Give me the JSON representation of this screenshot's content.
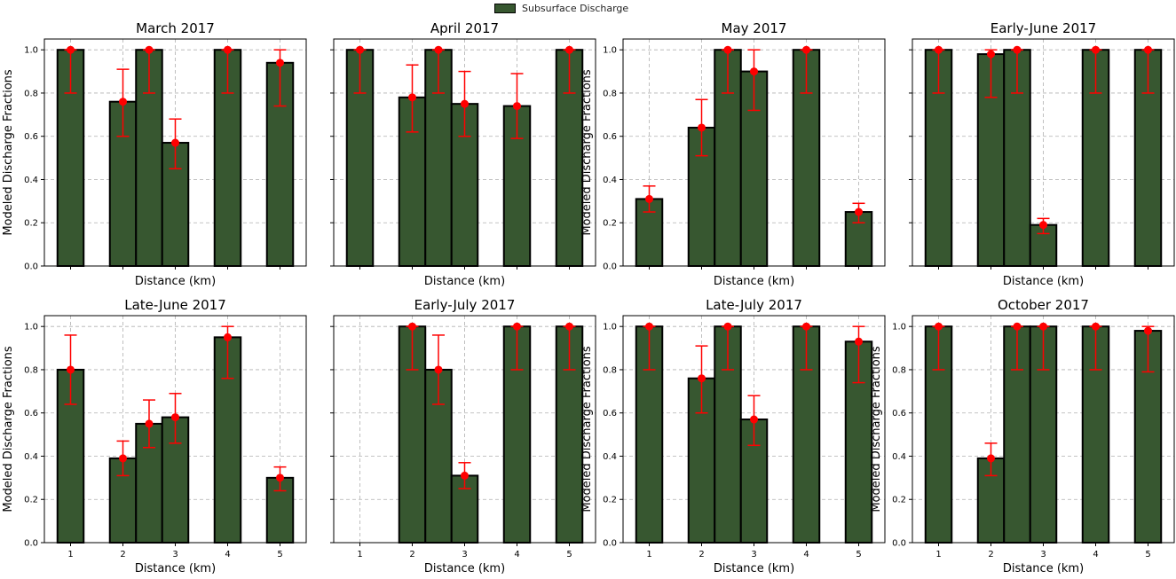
{
  "legend": {
    "label": "Subsurface Discharge",
    "color": "#375730"
  },
  "colors": {
    "bar": "#375730",
    "error": "#ff0000",
    "grid": "#b0b0b0"
  },
  "chart_data": [
    {
      "type": "bar",
      "title": "March 2017",
      "xlabel": "Distance (km)",
      "ylabel": "Modeled Discharge Fractions",
      "xlim": [
        0.5,
        5.5
      ],
      "ylim": [
        0,
        1.05
      ],
      "yticks": [
        0.0,
        0.2,
        0.4,
        0.6,
        0.8,
        1.0
      ],
      "yticklabels": [
        "0.0",
        "0.2",
        "0.4",
        "0.6",
        "0.8",
        "1.0"
      ],
      "xticks": [
        1,
        2,
        3,
        4,
        5
      ],
      "xticklabels": [],
      "bars": [
        {
          "x": 1,
          "value": 1.0,
          "err_low": 0.8,
          "err_high": 1.0
        },
        {
          "x": 2,
          "value": 0.76,
          "err_low": 0.6,
          "err_high": 0.91
        },
        {
          "x": 2.5,
          "value": 1.0,
          "err_low": 0.8,
          "err_high": 1.0
        },
        {
          "x": 3,
          "value": 0.57,
          "err_low": 0.45,
          "err_high": 0.68
        },
        {
          "x": 4,
          "value": 1.0,
          "err_low": 0.8,
          "err_high": 1.0
        },
        {
          "x": 5,
          "value": 0.94,
          "err_low": 0.74,
          "err_high": 1.0
        }
      ]
    },
    {
      "type": "bar",
      "title": "April 2017",
      "xlabel": "Distance (km)",
      "ylabel": "",
      "xlim": [
        0.5,
        5.5
      ],
      "ylim": [
        0,
        1.05
      ],
      "yticks": [
        0.0,
        0.2,
        0.4,
        0.6,
        0.8,
        1.0
      ],
      "yticklabels": [],
      "xticks": [
        1,
        2,
        3,
        4,
        5
      ],
      "xticklabels": [],
      "bars": [
        {
          "x": 1,
          "value": 1.0,
          "err_low": 0.8,
          "err_high": 1.0
        },
        {
          "x": 2,
          "value": 0.78,
          "err_low": 0.62,
          "err_high": 0.93
        },
        {
          "x": 2.5,
          "value": 1.0,
          "err_low": 0.8,
          "err_high": 1.0
        },
        {
          "x": 3,
          "value": 0.75,
          "err_low": 0.6,
          "err_high": 0.9
        },
        {
          "x": 4,
          "value": 0.74,
          "err_low": 0.59,
          "err_high": 0.89
        },
        {
          "x": 5,
          "value": 1.0,
          "err_low": 0.8,
          "err_high": 1.0
        }
      ]
    },
    {
      "type": "bar",
      "title": "May 2017",
      "xlabel": "Distance (km)",
      "ylabel": "Modeled Discharge Fractions",
      "xlim": [
        0.5,
        5.5
      ],
      "ylim": [
        0,
        1.05
      ],
      "yticks": [
        0.0,
        0.2,
        0.4,
        0.6,
        0.8,
        1.0
      ],
      "yticklabels": [
        "0.0",
        "0.2",
        "0.4",
        "0.6",
        "0.8",
        "1.0"
      ],
      "xticks": [
        1,
        2,
        3,
        4,
        5
      ],
      "xticklabels": [],
      "bars": [
        {
          "x": 1,
          "value": 0.31,
          "err_low": 0.25,
          "err_high": 0.37
        },
        {
          "x": 2,
          "value": 0.64,
          "err_low": 0.51,
          "err_high": 0.77
        },
        {
          "x": 2.5,
          "value": 1.0,
          "err_low": 0.8,
          "err_high": 1.0
        },
        {
          "x": 3,
          "value": 0.9,
          "err_low": 0.72,
          "err_high": 1.0
        },
        {
          "x": 4,
          "value": 1.0,
          "err_low": 0.8,
          "err_high": 1.0
        },
        {
          "x": 5,
          "value": 0.25,
          "err_low": 0.2,
          "err_high": 0.29
        }
      ]
    },
    {
      "type": "bar",
      "title": "Early-June 2017",
      "xlabel": "Distance (km)",
      "ylabel": "",
      "xlim": [
        0.5,
        5.5
      ],
      "ylim": [
        0,
        1.05
      ],
      "yticks": [
        0.0,
        0.2,
        0.4,
        0.6,
        0.8,
        1.0
      ],
      "yticklabels": [],
      "xticks": [
        1,
        2,
        3,
        4,
        5
      ],
      "xticklabels": [],
      "bars": [
        {
          "x": 1,
          "value": 1.0,
          "err_low": 0.8,
          "err_high": 1.0
        },
        {
          "x": 2,
          "value": 0.98,
          "err_low": 0.78,
          "err_high": 1.0
        },
        {
          "x": 2.5,
          "value": 1.0,
          "err_low": 0.8,
          "err_high": 1.0
        },
        {
          "x": 3,
          "value": 0.19,
          "err_low": 0.15,
          "err_high": 0.22
        },
        {
          "x": 4,
          "value": 1.0,
          "err_low": 0.8,
          "err_high": 1.0
        },
        {
          "x": 5,
          "value": 1.0,
          "err_low": 0.8,
          "err_high": 1.0
        }
      ]
    },
    {
      "type": "bar",
      "title": "Late-June 2017",
      "xlabel": "Distance (km)",
      "ylabel": "Modeled Discharge Fractions",
      "xlim": [
        0.5,
        5.5
      ],
      "ylim": [
        0,
        1.05
      ],
      "yticks": [
        0.0,
        0.2,
        0.4,
        0.6,
        0.8,
        1.0
      ],
      "yticklabels": [
        "0.0",
        "0.2",
        "0.4",
        "0.6",
        "0.8",
        "1.0"
      ],
      "xticks": [
        1,
        2,
        3,
        4,
        5
      ],
      "xticklabels": [
        "1",
        "2",
        "3",
        "4",
        "5"
      ],
      "bars": [
        {
          "x": 1,
          "value": 0.8,
          "err_low": 0.64,
          "err_high": 0.96
        },
        {
          "x": 2,
          "value": 0.39,
          "err_low": 0.31,
          "err_high": 0.47
        },
        {
          "x": 2.5,
          "value": 0.55,
          "err_low": 0.44,
          "err_high": 0.66
        },
        {
          "x": 3,
          "value": 0.58,
          "err_low": 0.46,
          "err_high": 0.69
        },
        {
          "x": 4,
          "value": 0.95,
          "err_low": 0.76,
          "err_high": 1.0
        },
        {
          "x": 5,
          "value": 0.3,
          "err_low": 0.24,
          "err_high": 0.35
        }
      ]
    },
    {
      "type": "bar",
      "title": "Early-July 2017",
      "xlabel": "Distance (km)",
      "ylabel": "",
      "xlim": [
        0.5,
        5.5
      ],
      "ylim": [
        0,
        1.05
      ],
      "yticks": [
        0.0,
        0.2,
        0.4,
        0.6,
        0.8,
        1.0
      ],
      "yticklabels": [],
      "xticks": [
        1,
        2,
        3,
        4,
        5
      ],
      "xticklabels": [
        "1",
        "2",
        "3",
        "4",
        "5"
      ],
      "bars": [
        {
          "x": 2,
          "value": 1.0,
          "err_low": 0.8,
          "err_high": 1.0
        },
        {
          "x": 2.5,
          "value": 0.8,
          "err_low": 0.64,
          "err_high": 0.96
        },
        {
          "x": 3,
          "value": 0.31,
          "err_low": 0.25,
          "err_high": 0.37
        },
        {
          "x": 4,
          "value": 1.0,
          "err_low": 0.8,
          "err_high": 1.0
        },
        {
          "x": 5,
          "value": 1.0,
          "err_low": 0.8,
          "err_high": 1.0
        }
      ]
    },
    {
      "type": "bar",
      "title": "Late-July 2017",
      "xlabel": "Distance (km)",
      "ylabel": "Modeled Discharge Fractions",
      "xlim": [
        0.5,
        5.5
      ],
      "ylim": [
        0,
        1.05
      ],
      "yticks": [
        0.0,
        0.2,
        0.4,
        0.6,
        0.8,
        1.0
      ],
      "yticklabels": [
        "0.0",
        "0.2",
        "0.4",
        "0.6",
        "0.8",
        "1.0"
      ],
      "xticks": [
        1,
        2,
        3,
        4,
        5
      ],
      "xticklabels": [
        "1",
        "2",
        "3",
        "4",
        "5"
      ],
      "bars": [
        {
          "x": 1,
          "value": 1.0,
          "err_low": 0.8,
          "err_high": 1.0
        },
        {
          "x": 2,
          "value": 0.76,
          "err_low": 0.6,
          "err_high": 0.91
        },
        {
          "x": 2.5,
          "value": 1.0,
          "err_low": 0.8,
          "err_high": 1.0
        },
        {
          "x": 3,
          "value": 0.57,
          "err_low": 0.45,
          "err_high": 0.68
        },
        {
          "x": 4,
          "value": 1.0,
          "err_low": 0.8,
          "err_high": 1.0
        },
        {
          "x": 5,
          "value": 0.93,
          "err_low": 0.74,
          "err_high": 1.0
        }
      ]
    },
    {
      "type": "bar",
      "title": "October 2017",
      "xlabel": "Distance (km)",
      "ylabel": "Modeled Discharge Fractions",
      "xlim": [
        0.5,
        5.5
      ],
      "ylim": [
        0,
        1.05
      ],
      "yticks": [
        0.0,
        0.2,
        0.4,
        0.6,
        0.8,
        1.0
      ],
      "yticklabels": [
        "0.0",
        "0.2",
        "0.4",
        "0.6",
        "0.8",
        "1.0"
      ],
      "xticks": [
        1,
        2,
        3,
        4,
        5
      ],
      "xticklabels": [
        "1",
        "2",
        "3",
        "4",
        "5"
      ],
      "bars": [
        {
          "x": 1,
          "value": 1.0,
          "err_low": 0.8,
          "err_high": 1.0
        },
        {
          "x": 2,
          "value": 0.39,
          "err_low": 0.31,
          "err_high": 0.46
        },
        {
          "x": 2.5,
          "value": 1.0,
          "err_low": 0.8,
          "err_high": 1.0
        },
        {
          "x": 3,
          "value": 1.0,
          "err_low": 0.8,
          "err_high": 1.0
        },
        {
          "x": 4,
          "value": 1.0,
          "err_low": 0.8,
          "err_high": 1.0
        },
        {
          "x": 5,
          "value": 0.98,
          "err_low": 0.79,
          "err_high": 1.0
        }
      ]
    }
  ]
}
